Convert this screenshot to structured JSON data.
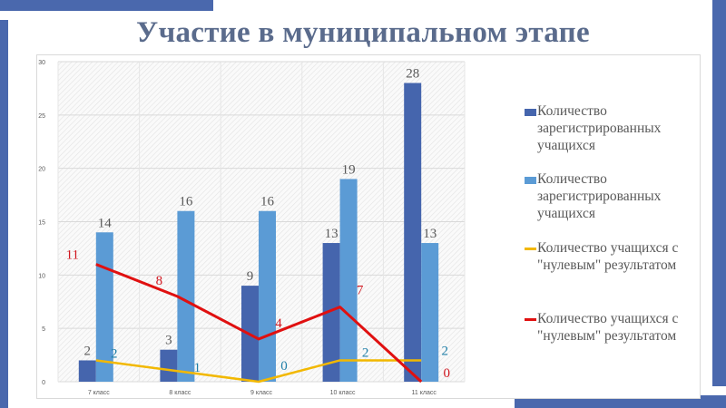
{
  "title": "Участие в муниципальном этапе",
  "chart_data": {
    "type": "bar",
    "title": "Участие в муниципальном этапе",
    "categories": [
      "7 класс",
      "8 класс",
      "9 класс",
      "10 класс",
      "11 класс"
    ],
    "ylim": [
      0,
      30
    ],
    "yticks": [
      "0",
      "5",
      "10",
      "15",
      "20",
      "25",
      "30"
    ],
    "grid": true,
    "legend_position": "right",
    "series": [
      {
        "name": "Количество зарегистрированных учащихся",
        "kind": "bar",
        "color": "#4565ad",
        "label_color": "#595959",
        "values": [
          2,
          3,
          9,
          13,
          28
        ],
        "labels": [
          "2",
          "3",
          "9",
          "13",
          "28"
        ]
      },
      {
        "name": "Количество зарегистрированных учащихся",
        "kind": "bar",
        "color": "#5b9bd5",
        "label_color": "#595959",
        "values": [
          14,
          16,
          16,
          19,
          13
        ],
        "labels": [
          "14",
          "16",
          "16",
          "19",
          "13"
        ]
      },
      {
        "name": "Количество учащихся с \"нулевым\" результатом",
        "kind": "line",
        "color": "#f2b800",
        "label_color": "#1f7fa8",
        "values": [
          2,
          1,
          0,
          2,
          2
        ],
        "labels": [
          "2",
          "1",
          "0",
          "2",
          "2"
        ]
      },
      {
        "name": "Количество учащихся с \"нулевым\" результатом",
        "kind": "line",
        "color": "#e01010",
        "label_color": "#d0161f",
        "values": [
          11,
          8,
          4,
          7,
          0
        ],
        "labels": [
          "11",
          "8",
          "4",
          "7",
          "0"
        ]
      }
    ]
  }
}
